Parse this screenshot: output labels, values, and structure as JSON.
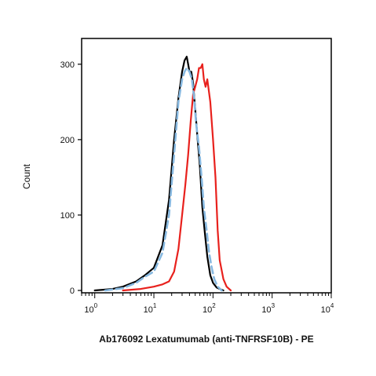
{
  "chart_data": {
    "type": "line",
    "title": "",
    "xlabel": "Ab176092 Lexatumumab (anti-TNFRSF10B) - PE",
    "ylabel": "Count",
    "x_scale": "log",
    "xlim": [
      0.6,
      10000
    ],
    "ylim": [
      0,
      330
    ],
    "x_ticks": [
      {
        "value": 1,
        "base": "10",
        "exp": "0"
      },
      {
        "value": 10,
        "base": "10",
        "exp": "1"
      },
      {
        "value": 100,
        "base": "10",
        "exp": "2"
      },
      {
        "value": 1000,
        "base": "10",
        "exp": "3"
      },
      {
        "value": 10000,
        "base": "10",
        "exp": "4"
      }
    ],
    "y_ticks": [
      0,
      100,
      200,
      300
    ],
    "grid": false,
    "legend": "none",
    "series": [
      {
        "color": "#000000",
        "style": "solid",
        "x": [
          1,
          2,
          3,
          5,
          7,
          10,
          14,
          18,
          22,
          26,
          30,
          33,
          36,
          38,
          40,
          43,
          46,
          50,
          55,
          60,
          66,
          73,
          80,
          90,
          100,
          115,
          130,
          150
        ],
        "y": [
          0,
          2,
          5,
          12,
          20,
          30,
          60,
          120,
          200,
          255,
          290,
          305,
          310,
          300,
          290,
          290,
          275,
          240,
          200,
          165,
          110,
          75,
          45,
          20,
          10,
          4,
          2,
          0
        ]
      },
      {
        "color": "#e8211d",
        "style": "solid",
        "x": [
          3,
          6,
          10,
          14,
          18,
          22,
          26,
          30,
          34,
          38,
          42,
          46,
          50,
          54,
          58,
          62,
          66,
          70,
          75,
          80,
          90,
          100,
          110,
          120,
          130,
          150,
          170,
          200
        ],
        "y": [
          0,
          2,
          5,
          8,
          12,
          25,
          55,
          100,
          140,
          180,
          225,
          260,
          270,
          280,
          295,
          295,
          300,
          280,
          270,
          280,
          250,
          200,
          150,
          80,
          40,
          15,
          5,
          0
        ]
      },
      {
        "color": "#86b8e0",
        "style": "dashed",
        "x": [
          1.5,
          3,
          5,
          7,
          10,
          14,
          18,
          22,
          26,
          30,
          33,
          36,
          40,
          44,
          48,
          52,
          58,
          64,
          70,
          78,
          86,
          95,
          105,
          120,
          140
        ],
        "y": [
          0,
          3,
          10,
          18,
          25,
          50,
          100,
          180,
          250,
          280,
          290,
          295,
          290,
          280,
          255,
          220,
          190,
          150,
          110,
          80,
          50,
          30,
          15,
          5,
          0
        ]
      }
    ]
  }
}
